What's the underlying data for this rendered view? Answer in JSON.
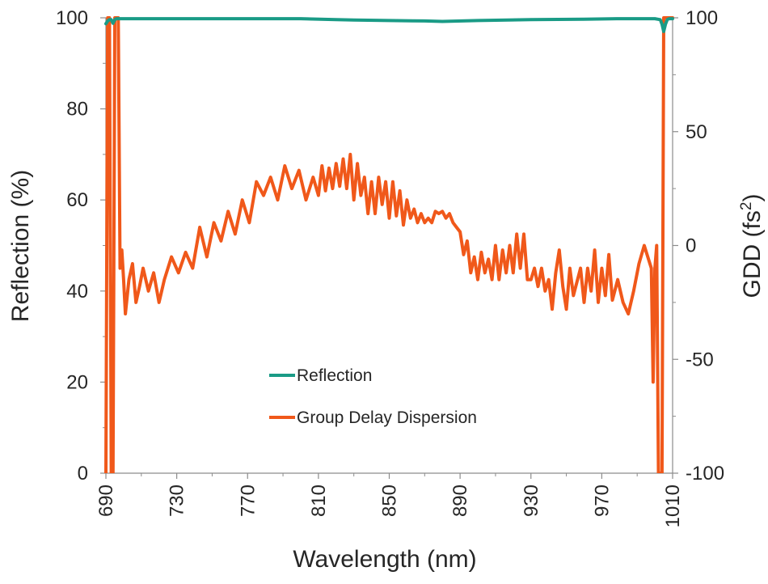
{
  "chart_data": {
    "type": "line",
    "xlabel": "Wavelength (nm)",
    "ylabel_left": "Reflection (%)",
    "ylabel_right_base": "GDD (fs",
    "ylabel_right_sup": "2",
    "ylabel_right_tail": ")",
    "xlim": [
      690,
      1010
    ],
    "ylim_left": [
      0,
      100
    ],
    "ylim_right": [
      -100,
      100
    ],
    "xticks": [
      "690",
      "730",
      "770",
      "810",
      "850",
      "890",
      "930",
      "970",
      "1010"
    ],
    "yticks_left": [
      "0",
      "20",
      "40",
      "60",
      "80",
      "100"
    ],
    "yticks_right": [
      "-100",
      "-50",
      "0",
      "50",
      "100"
    ],
    "legend": [
      "Reflection",
      "Group Delay Dispersion"
    ],
    "series": [
      {
        "name": "Reflection",
        "axis": "left",
        "color": "#1a9b86",
        "x": [
          690,
          691,
          692,
          693,
          694,
          695,
          696,
          700,
          720,
          760,
          800,
          820,
          830,
          850,
          870,
          880,
          900,
          930,
          960,
          980,
          995,
          1000,
          1003,
          1004,
          1005,
          1006,
          1007,
          1008,
          1010
        ],
        "y": [
          98.7,
          99.3,
          99.6,
          99.6,
          98.8,
          99.6,
          99.8,
          99.8,
          99.8,
          99.8,
          99.8,
          99.6,
          99.5,
          99.4,
          99.3,
          99.2,
          99.4,
          99.6,
          99.7,
          99.8,
          99.8,
          99.8,
          99.6,
          98.6,
          97.0,
          98.6,
          99.6,
          99.8,
          99.8
        ]
      },
      {
        "name": "Group Delay Dispersion",
        "axis": "right",
        "color": "#f0581a",
        "x": [
          690,
          691,
          692,
          693,
          694,
          695,
          696,
          697,
          698,
          699,
          700,
          701,
          703,
          705,
          707,
          709,
          711,
          714,
          717,
          720,
          723,
          727,
          731,
          735,
          739,
          743,
          747,
          751,
          755,
          759,
          763,
          767,
          771,
          775,
          779,
          783,
          787,
          791,
          795,
          799,
          803,
          807,
          810,
          812,
          814,
          816,
          818,
          820,
          822,
          824,
          826,
          828,
          830,
          832,
          834,
          836,
          838,
          840,
          842,
          844,
          846,
          848,
          850,
          852,
          854,
          856,
          858,
          860,
          862,
          864,
          866,
          868,
          870,
          872,
          874,
          876,
          878,
          880,
          882,
          884,
          886,
          888,
          890,
          892,
          894,
          896,
          898,
          900,
          902,
          904,
          906,
          908,
          910,
          912,
          914,
          916,
          918,
          920,
          922,
          924,
          926,
          928,
          930,
          932,
          934,
          936,
          938,
          940,
          942,
          944,
          946,
          948,
          950,
          952,
          954,
          956,
          958,
          960,
          962,
          964,
          966,
          968,
          970,
          972,
          974,
          976,
          979,
          982,
          985,
          988,
          991,
          994,
          996,
          998,
          999,
          1000,
          1001,
          1002,
          1003,
          1004,
          1005,
          1006,
          1007,
          1008,
          1009,
          1010
        ],
        "y": [
          -100,
          100,
          100,
          -100,
          -100,
          100,
          100,
          100,
          -10,
          -2,
          -15,
          -30,
          -15,
          -8,
          -25,
          -18,
          -10,
          -20,
          -12,
          -25,
          -15,
          -5,
          -12,
          -3,
          -10,
          8,
          -5,
          10,
          2,
          15,
          5,
          20,
          10,
          28,
          22,
          30,
          20,
          35,
          25,
          33,
          20,
          30,
          22,
          35,
          24,
          34,
          25,
          36,
          26,
          38,
          25,
          40,
          20,
          36,
          22,
          30,
          14,
          28,
          14,
          30,
          18,
          28,
          12,
          28,
          13,
          24,
          9,
          20,
          12,
          16,
          10,
          14,
          10,
          12,
          10,
          15,
          14,
          15,
          12,
          14,
          10,
          8,
          6,
          -4,
          2,
          -12,
          -5,
          -15,
          -3,
          -12,
          -6,
          -15,
          0,
          -15,
          -2,
          -12,
          0,
          -12,
          5,
          -10,
          5,
          -15,
          -15,
          -10,
          -18,
          -10,
          -20,
          -15,
          -28,
          -12,
          -2,
          -18,
          -28,
          -10,
          -22,
          -16,
          -10,
          -25,
          -10,
          -20,
          -2,
          -25,
          -10,
          -22,
          -4,
          -24,
          -15,
          -25,
          -30,
          -20,
          -8,
          0,
          -5,
          -10,
          -60,
          -10,
          0,
          -100,
          -100,
          -100,
          100,
          100,
          100,
          100,
          100,
          100
        ]
      }
    ]
  }
}
